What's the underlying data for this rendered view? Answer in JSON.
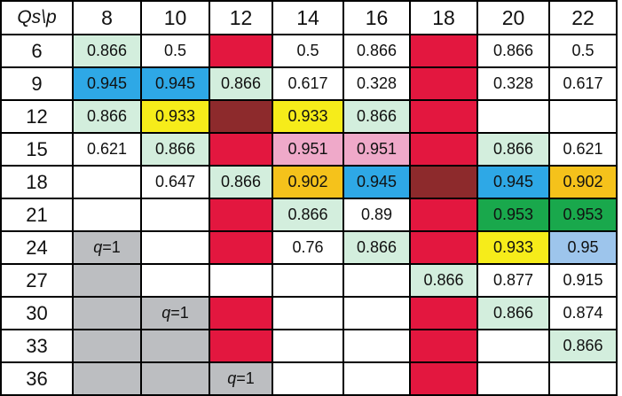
{
  "table": {
    "corner_label": "Qs\\p",
    "columns": [
      "8",
      "10",
      "12",
      "14",
      "16",
      "18",
      "20",
      "22"
    ],
    "colors": {
      "white": "#ffffff",
      "light_green": "#d3eedd",
      "blue": "#2ea8e6",
      "yellow": "#f6ec1a",
      "dark_red": "#8d2a2c",
      "red": "#e3173f",
      "pink": "#efa9c9",
      "orange": "#f5c21b",
      "green": "#19a84c",
      "light_blue": "#9dc5ec",
      "gray": "#bcbec1"
    },
    "q_label": {
      "italic": "q",
      "rest": "=1"
    },
    "rows": [
      {
        "label": "6",
        "cells": [
          {
            "text": "0.866",
            "color": "light_green"
          },
          {
            "text": "0.5",
            "color": "white"
          },
          {
            "text": "",
            "color": "red"
          },
          {
            "text": "0.5",
            "color": "white"
          },
          {
            "text": "0.866",
            "color": "white"
          },
          {
            "text": "",
            "color": "red"
          },
          {
            "text": "0.866",
            "color": "white"
          },
          {
            "text": "0.5",
            "color": "white"
          }
        ]
      },
      {
        "label": "9",
        "cells": [
          {
            "text": "0.945",
            "color": "blue"
          },
          {
            "text": "0.945",
            "color": "blue"
          },
          {
            "text": "0.866",
            "color": "light_green"
          },
          {
            "text": "0.617",
            "color": "white"
          },
          {
            "text": "0.328",
            "color": "white"
          },
          {
            "text": "",
            "color": "red"
          },
          {
            "text": "0.328",
            "color": "white"
          },
          {
            "text": "0.617",
            "color": "white"
          }
        ]
      },
      {
        "label": "12",
        "cells": [
          {
            "text": "0.866",
            "color": "light_green"
          },
          {
            "text": "0.933",
            "color": "yellow"
          },
          {
            "text": "",
            "color": "dark_red"
          },
          {
            "text": "0.933",
            "color": "yellow"
          },
          {
            "text": "0.866",
            "color": "light_green"
          },
          {
            "text": "",
            "color": "red"
          },
          {
            "text": "",
            "color": "white"
          },
          {
            "text": "",
            "color": "white"
          }
        ]
      },
      {
        "label": "15",
        "cells": [
          {
            "text": "0.621",
            "color": "white"
          },
          {
            "text": "0.866",
            "color": "light_green"
          },
          {
            "text": "",
            "color": "red"
          },
          {
            "text": "0.951",
            "color": "pink"
          },
          {
            "text": "0.951",
            "color": "pink"
          },
          {
            "text": "",
            "color": "red"
          },
          {
            "text": "0.866",
            "color": "light_green"
          },
          {
            "text": "0.621",
            "color": "white"
          }
        ]
      },
      {
        "label": "18",
        "cells": [
          {
            "text": "",
            "color": "white"
          },
          {
            "text": "0.647",
            "color": "white"
          },
          {
            "text": "0.866",
            "color": "light_green"
          },
          {
            "text": "0.902",
            "color": "orange"
          },
          {
            "text": "0.945",
            "color": "blue"
          },
          {
            "text": "",
            "color": "dark_red"
          },
          {
            "text": "0.945",
            "color": "blue"
          },
          {
            "text": "0.902",
            "color": "orange"
          }
        ]
      },
      {
        "label": "21",
        "cells": [
          {
            "text": "",
            "color": "white"
          },
          {
            "text": "",
            "color": "white"
          },
          {
            "text": "",
            "color": "red"
          },
          {
            "text": "0.866",
            "color": "light_green"
          },
          {
            "text": "0.89",
            "color": "white"
          },
          {
            "text": "",
            "color": "red"
          },
          {
            "text": "0.953",
            "color": "green"
          },
          {
            "text": "0.953",
            "color": "green"
          }
        ]
      },
      {
        "label": "24",
        "cells": [
          {
            "text": "",
            "color": "gray",
            "q": true
          },
          {
            "text": "",
            "color": "white"
          },
          {
            "text": "",
            "color": "red"
          },
          {
            "text": "0.76",
            "color": "white"
          },
          {
            "text": "0.866",
            "color": "light_green"
          },
          {
            "text": "",
            "color": "red"
          },
          {
            "text": "0.933",
            "color": "yellow"
          },
          {
            "text": "0.95",
            "color": "light_blue"
          }
        ]
      },
      {
        "label": "27",
        "cells": [
          {
            "text": "",
            "color": "gray"
          },
          {
            "text": "",
            "color": "white"
          },
          {
            "text": "",
            "color": "white"
          },
          {
            "text": "",
            "color": "white"
          },
          {
            "text": "",
            "color": "white"
          },
          {
            "text": "0.866",
            "color": "light_green"
          },
          {
            "text": "0.877",
            "color": "white"
          },
          {
            "text": "0.915",
            "color": "white"
          }
        ]
      },
      {
        "label": "30",
        "cells": [
          {
            "text": "",
            "color": "gray"
          },
          {
            "text": "",
            "color": "gray",
            "q": true
          },
          {
            "text": "",
            "color": "red"
          },
          {
            "text": "",
            "color": "white"
          },
          {
            "text": "",
            "color": "white"
          },
          {
            "text": "",
            "color": "red"
          },
          {
            "text": "0.866",
            "color": "light_green"
          },
          {
            "text": "0.874",
            "color": "white"
          }
        ]
      },
      {
        "label": "33",
        "cells": [
          {
            "text": "",
            "color": "gray"
          },
          {
            "text": "",
            "color": "gray"
          },
          {
            "text": "",
            "color": "red"
          },
          {
            "text": "",
            "color": "white"
          },
          {
            "text": "",
            "color": "white"
          },
          {
            "text": "",
            "color": "red"
          },
          {
            "text": "",
            "color": "white"
          },
          {
            "text": "0.866",
            "color": "light_green"
          }
        ]
      },
      {
        "label": "36",
        "cells": [
          {
            "text": "",
            "color": "gray"
          },
          {
            "text": "",
            "color": "gray"
          },
          {
            "text": "",
            "color": "gray",
            "q": true
          },
          {
            "text": "",
            "color": "white"
          },
          {
            "text": "",
            "color": "white"
          },
          {
            "text": "",
            "color": "red"
          },
          {
            "text": "",
            "color": "white"
          },
          {
            "text": "",
            "color": "white"
          }
        ]
      }
    ]
  }
}
